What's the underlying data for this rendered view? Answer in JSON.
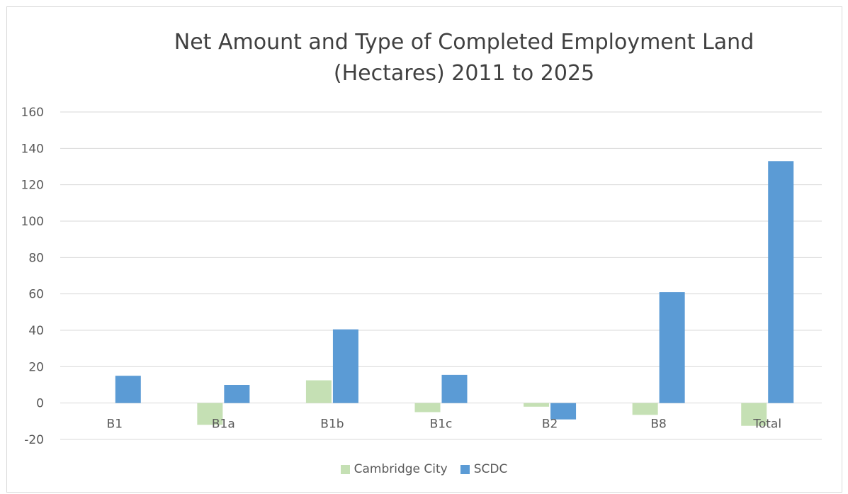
{
  "chart_data": {
    "type": "bar",
    "title": "Net Amount and Type of Completed Employment Land (Hectares) 2011 to 2025",
    "title_lines": [
      "Net Amount and Type of Completed Employment Land",
      "(Hectares) 2011 to 2025"
    ],
    "categories": [
      "B1",
      "B1a",
      "B1b",
      "B1c",
      "B2",
      "B8",
      "Total"
    ],
    "series": [
      {
        "name": "Cambridge City",
        "color": "#c5e0b4",
        "values": [
          0,
          -12,
          12.5,
          -5,
          -2,
          -6.5,
          -12.5
        ]
      },
      {
        "name": "SCDC",
        "color": "#5b9bd5",
        "values": [
          15,
          10,
          40.5,
          15.5,
          -9,
          61,
          133
        ]
      }
    ],
    "ylim": [
      -20,
      160
    ],
    "yticks": [
      -20,
      0,
      20,
      40,
      60,
      80,
      100,
      120,
      140,
      160
    ],
    "grid": true,
    "legend_position": "bottom"
  }
}
